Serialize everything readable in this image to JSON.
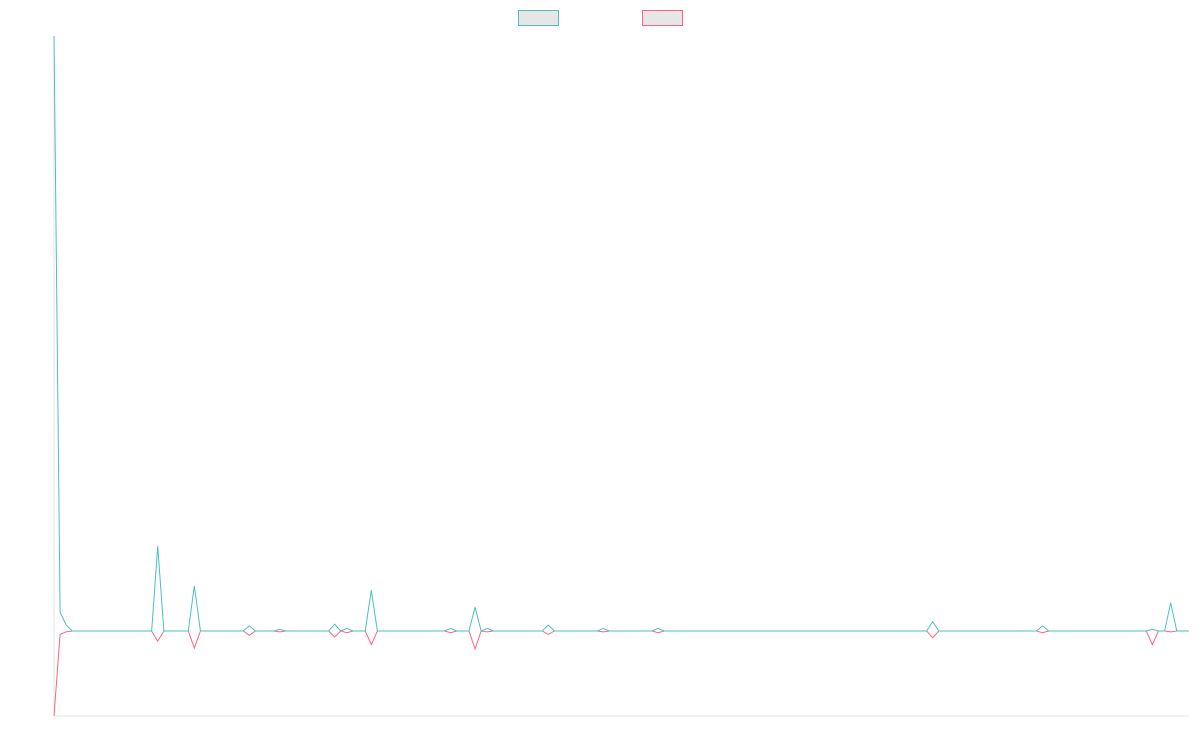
{
  "chart_data": {
    "type": "line",
    "categories": [
      null,
      null,
      null,
      null,
      null,
      null,
      null,
      null,
      null,
      null,
      null,
      null,
      null,
      null,
      null,
      null,
      null,
      null,
      null,
      null,
      null,
      null,
      null,
      null,
      null,
      null,
      null,
      null,
      null,
      null,
      null,
      null,
      null,
      null,
      null,
      null,
      null,
      null,
      null,
      null,
      null,
      null,
      null,
      null,
      null,
      null,
      null,
      null,
      null,
      null,
      null,
      null,
      null,
      null,
      null,
      null,
      null,
      null,
      null,
      null,
      null,
      null,
      null,
      null,
      null,
      null,
      null,
      null,
      null,
      null,
      null,
      null,
      null,
      null,
      null,
      null,
      null,
      null,
      null,
      null,
      null,
      null,
      null,
      null,
      null,
      null,
      null,
      null,
      null,
      null,
      null,
      null,
      null,
      null,
      null,
      null,
      null,
      null,
      null,
      null,
      null,
      null,
      null,
      null,
      null,
      null,
      null,
      null,
      null,
      null,
      null,
      null,
      null,
      null,
      null,
      null,
      null,
      null,
      null,
      null,
      null,
      null,
      null,
      null,
      null,
      null,
      null,
      null,
      null,
      null,
      null,
      null,
      null,
      null,
      null,
      null,
      null,
      null,
      null,
      null,
      null,
      null,
      null,
      null,
      null,
      null,
      null,
      null,
      null,
      null,
      null,
      null,
      null,
      null,
      null,
      null,
      null,
      null,
      null,
      null,
      null,
      null,
      null,
      null,
      null,
      null,
      null,
      null,
      null,
      null,
      null,
      null,
      null,
      null,
      null,
      null,
      null,
      null,
      null,
      null,
      null,
      null,
      null,
      null,
      null,
      null,
      null
    ],
    "series": [
      {
        "color": "#4bc0c0",
        "values": [
          700,
          22,
          7,
          0,
          0,
          0,
          0,
          0,
          0,
          0,
          0,
          0,
          0,
          0,
          0,
          0,
          0,
          100,
          0,
          0,
          0,
          0,
          0,
          53,
          0,
          0,
          0,
          0,
          0,
          0,
          0,
          0,
          6,
          0,
          0,
          0,
          0,
          2,
          0,
          0,
          0,
          0,
          0,
          0,
          0,
          0,
          8,
          0,
          3,
          0,
          0,
          0,
          48,
          0,
          0,
          0,
          0,
          0,
          0,
          0,
          0,
          0,
          0,
          0,
          0,
          3,
          0,
          0,
          0,
          28,
          0,
          3,
          0,
          0,
          0,
          0,
          0,
          0,
          0,
          0,
          0,
          7,
          0,
          0,
          0,
          0,
          0,
          0,
          0,
          0,
          3,
          0,
          0,
          0,
          0,
          0,
          0,
          0,
          0,
          3,
          0,
          0,
          0,
          0,
          0,
          0,
          0,
          0,
          0,
          0,
          0,
          0,
          0,
          0,
          0,
          0,
          0,
          0,
          0,
          0,
          0,
          0,
          0,
          0,
          0,
          0,
          0,
          0,
          0,
          0,
          0,
          0,
          0,
          0,
          0,
          0,
          0,
          0,
          0,
          0,
          0,
          0,
          0,
          0,
          11,
          0,
          0,
          0,
          0,
          0,
          0,
          0,
          0,
          0,
          0,
          0,
          0,
          0,
          0,
          0,
          0,
          0,
          6,
          0,
          0,
          0,
          0,
          0,
          0,
          0,
          0,
          0,
          0,
          0,
          0,
          0,
          0,
          0,
          0,
          0,
          2,
          0,
          0,
          33,
          0,
          0,
          0
        ]
      },
      {
        "color": "#ff6384",
        "values": [
          -100,
          -4,
          -1,
          0,
          0,
          0,
          0,
          0,
          0,
          0,
          0,
          0,
          0,
          0,
          0,
          0,
          0,
          -12,
          0,
          0,
          0,
          0,
          0,
          -20,
          0,
          0,
          0,
          0,
          0,
          0,
          0,
          0,
          -5,
          0,
          0,
          0,
          0,
          -1,
          0,
          0,
          0,
          0,
          0,
          0,
          0,
          0,
          -7,
          0,
          -2,
          0,
          0,
          0,
          -16,
          0,
          0,
          0,
          0,
          0,
          0,
          0,
          0,
          0,
          0,
          0,
          0,
          -2,
          0,
          0,
          0,
          -21,
          0,
          -1,
          0,
          0,
          0,
          0,
          0,
          0,
          0,
          0,
          0,
          -4,
          0,
          0,
          0,
          0,
          0,
          0,
          0,
          0,
          -1,
          0,
          0,
          0,
          0,
          0,
          0,
          0,
          0,
          -2,
          0,
          0,
          0,
          0,
          0,
          0,
          0,
          0,
          0,
          0,
          0,
          0,
          0,
          0,
          0,
          0,
          0,
          0,
          0,
          0,
          0,
          0,
          0,
          0,
          0,
          0,
          0,
          0,
          0,
          0,
          0,
          0,
          0,
          0,
          0,
          0,
          0,
          0,
          0,
          0,
          0,
          0,
          0,
          0,
          -8,
          0,
          0,
          0,
          0,
          0,
          0,
          0,
          0,
          0,
          0,
          0,
          0,
          0,
          0,
          0,
          0,
          0,
          -2,
          0,
          0,
          0,
          0,
          0,
          0,
          0,
          0,
          0,
          0,
          0,
          0,
          0,
          0,
          0,
          0,
          0,
          -16,
          0,
          0,
          -1,
          0,
          0,
          0
        ]
      }
    ],
    "ylim": [
      -100,
      700
    ]
  }
}
